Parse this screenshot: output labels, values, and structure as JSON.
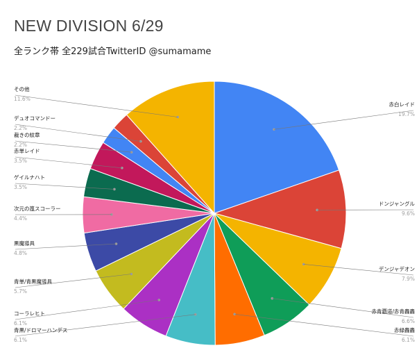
{
  "header": {
    "title": "NEW DIVISION 6/29",
    "subtitle": "全ランク帯 全229試合TwitterID @sumamame"
  },
  "chart_data": {
    "type": "pie",
    "title": "NEW DIVISION 6/29",
    "subtitle": "全ランク帯 全229試合TwitterID @sumamame",
    "slices": [
      {
        "label": "赤白レイド",
        "value": 19.7,
        "display": "19.7%",
        "color": "#4285f4"
      },
      {
        "label": "ドンジャングル",
        "value": 9.6,
        "display": "9.6%",
        "color": "#db4437"
      },
      {
        "label": "デンジャデオン",
        "value": 7.9,
        "display": "7.9%",
        "color": "#f4b400"
      },
      {
        "label": "赤青覇道/赤青轟轟",
        "value": 6.6,
        "display": "6.6%",
        "color": "#0f9d58"
      },
      {
        "label": "赤緑轟轟",
        "value": 6.1,
        "display": "6.1%",
        "color": "#ff6d00"
      },
      {
        "label": "青黒/ドロマーハンデス",
        "value": 6.1,
        "display": "6.1%",
        "color": "#46bdc6"
      },
      {
        "label": "コーラレヒト",
        "value": 6.1,
        "display": "6.1%",
        "color": "#ab30c4"
      },
      {
        "label": "青単/青黒魔導具",
        "value": 5.7,
        "display": "5.7%",
        "color": "#c3bb1f"
      },
      {
        "label": "黒魔導具",
        "value": 4.8,
        "display": "4.8%",
        "color": "#3c4aa6"
      },
      {
        "label": "次元の嵐スコーラー",
        "value": 4.4,
        "display": "4.4%",
        "color": "#f06ba3"
      },
      {
        "label": "ゲイルナハト",
        "value": 3.5,
        "display": "3.5%",
        "color": "#0b6b4f"
      },
      {
        "label": "赤単レイド",
        "value": 3.5,
        "display": "3.5%",
        "color": "#c2185b"
      },
      {
        "label": "裁きの紋章",
        "value": 2.2,
        "display": "2.2%",
        "color": "#4285f4"
      },
      {
        "label": "デュオコマンドー",
        "value": 2.2,
        "display": "2.2%",
        "color": "#db4437"
      },
      {
        "label": "その他",
        "value": 11.6,
        "display": "11.6%",
        "color": "#f4b400"
      }
    ]
  }
}
